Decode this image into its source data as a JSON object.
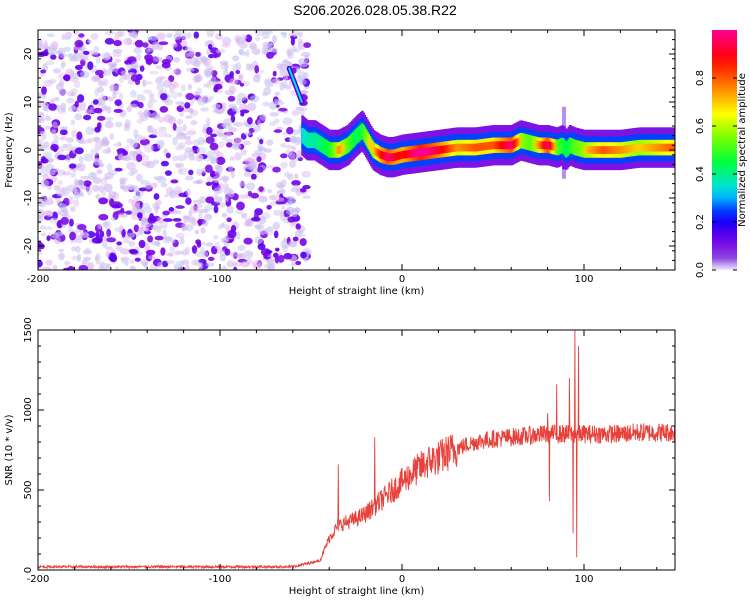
{
  "figure_title": "S206.2026.028.05.38.R22",
  "chart_data": [
    {
      "type": "heatmap",
      "name": "spectrogram",
      "xlabel": "Height of straight line (km)",
      "ylabel": "Frequency (Hz)",
      "xlim": [
        -200,
        150
      ],
      "ylim": [
        -25,
        25
      ],
      "xticks": [
        -200,
        -100,
        0,
        100
      ],
      "yticks": [
        -20,
        -10,
        0,
        10,
        20
      ],
      "colorbar": {
        "label": "Normalized spectral amplitude",
        "range": [
          0,
          1
        ],
        "ticks": [
          0.0,
          0.2,
          0.4,
          0.6,
          0.8
        ]
      },
      "noise_region_x": [
        -200,
        -55
      ],
      "ridge": {
        "x": [
          -55,
          -52,
          -48,
          -44,
          -40,
          -35,
          -30,
          -25,
          -22,
          -19,
          -16,
          -12,
          -8,
          -5,
          0,
          10,
          20,
          30,
          40,
          50,
          60,
          65,
          70,
          75,
          80,
          85,
          88,
          90,
          92,
          95,
          100,
          110,
          120,
          130,
          140,
          150
        ],
        "frequency": [
          3,
          2,
          2,
          1,
          0,
          0,
          1,
          3,
          4,
          2,
          0,
          -1,
          -1.5,
          -1.5,
          -1,
          -0.5,
          0,
          0.5,
          0.5,
          1,
          1,
          2,
          1.5,
          1,
          1,
          0.5,
          1,
          0,
          1,
          0.5,
          0,
          0,
          0,
          0.5,
          0.5,
          0.5
        ],
        "amplitude": [
          0.35,
          0.4,
          0.4,
          0.45,
          0.5,
          0.65,
          0.55,
          0.45,
          0.5,
          0.6,
          0.6,
          0.75,
          0.85,
          0.8,
          0.75,
          0.9,
          0.8,
          0.65,
          0.7,
          0.7,
          0.85,
          0.6,
          0.55,
          0.65,
          0.85,
          0.55,
          0.5,
          0.45,
          0.5,
          0.55,
          0.6,
          0.7,
          0.65,
          0.6,
          0.65,
          0.7
        ]
      },
      "spike_segment": {
        "x": [
          -62,
          -55
        ],
        "frequency": [
          17,
          10
        ],
        "amplitude": 0.15
      },
      "vertical_feature": {
        "x": 89,
        "frequency_range": [
          -6,
          9
        ],
        "amplitude": 0.15
      }
    },
    {
      "type": "line",
      "name": "snr",
      "xlabel": "Height of straight line (km)",
      "ylabel": "SNR (10 * v/v)",
      "xlim": [
        -200,
        150
      ],
      "ylim": [
        0,
        1500
      ],
      "xticks": [
        -200,
        -100,
        0,
        100
      ],
      "yticks": [
        0,
        500,
        1000,
        1500
      ],
      "color": "#e8403a",
      "trend": {
        "x": [
          -200,
          -60,
          -45,
          -40,
          -35,
          -30,
          -25,
          -20,
          -15,
          -10,
          -5,
          0,
          5,
          10,
          15,
          20,
          25,
          30,
          40,
          50,
          60,
          70,
          80,
          90,
          100,
          110,
          120,
          130,
          140,
          150
        ],
        "y": [
          20,
          20,
          60,
          200,
          280,
          300,
          320,
          350,
          400,
          450,
          500,
          550,
          600,
          640,
          680,
          700,
          730,
          760,
          800,
          820,
          830,
          840,
          850,
          850,
          850,
          850,
          850,
          860,
          860,
          860
        ]
      },
      "spikes": [
        {
          "x": -35,
          "y": 660
        },
        {
          "x": -15,
          "y": 830
        },
        {
          "x": 80,
          "y": 980
        },
        {
          "x": 81,
          "y": 430
        },
        {
          "x": 85,
          "y": 1160
        },
        {
          "x": 92,
          "y": 1200
        },
        {
          "x": 94,
          "y": 230
        },
        {
          "x": 95,
          "y": 1500
        },
        {
          "x": 96,
          "y": 80
        },
        {
          "x": 97,
          "y": 1400
        }
      ]
    }
  ]
}
